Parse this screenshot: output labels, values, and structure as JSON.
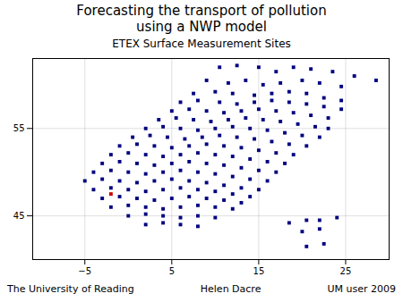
{
  "chart_data": {
    "type": "scatter",
    "title": [
      "Forecasting the transport of pollution",
      "using a NWP model"
    ],
    "subtitle": "ETEX Surface Measurement Sites",
    "annotations": [
      "The University of Reading",
      "Helen Dacre",
      "UM user 2009"
    ],
    "xlim": [
      -11,
      30
    ],
    "ylim": [
      40,
      63
    ],
    "xticks": [
      -5,
      5,
      15,
      25
    ],
    "yticks": [
      45,
      55
    ],
    "grid": true,
    "series": [
      {
        "type": "scatter",
        "marker": "square",
        "color": "#000080",
        "x": [
          10.5,
          12.5,
          15.0,
          17.0,
          19.0,
          21.0,
          23.5,
          26.0,
          28.5,
          9.0,
          11.5,
          13.5,
          15.5,
          17.5,
          20.0,
          22.0,
          24.5,
          7.5,
          10.0,
          12.0,
          14.5,
          16.5,
          18.5,
          20.5,
          22.5,
          24.5,
          6.0,
          8.0,
          10.5,
          12.5,
          14.5,
          16.5,
          18.5,
          20.5,
          22.5,
          24.5,
          5.0,
          7.0,
          9.0,
          11.0,
          13.0,
          15.0,
          17.0,
          19.0,
          21.0,
          23.0,
          3.5,
          5.5,
          7.5,
          9.5,
          11.5,
          13.5,
          15.5,
          17.5,
          19.5,
          21.5,
          23.0,
          2.0,
          4.0,
          6.0,
          8.0,
          10.0,
          12.0,
          14.0,
          16.0,
          18.0,
          20.0,
          22.0,
          0.5,
          2.5,
          4.5,
          6.5,
          8.5,
          10.5,
          12.5,
          14.5,
          16.5,
          18.5,
          20.5,
          -1.0,
          1.0,
          3.0,
          5.0,
          7.0,
          9.0,
          11.0,
          13.0,
          15.0,
          17.0,
          19.0,
          -2.0,
          0.0,
          2.0,
          4.0,
          6.0,
          8.0,
          10.0,
          12.0,
          14.0,
          16.0,
          18.0,
          -3.0,
          -1.0,
          1.0,
          3.0,
          5.0,
          7.0,
          9.0,
          11.0,
          13.0,
          15.0,
          17.0,
          -4.0,
          -2.0,
          0.0,
          2.0,
          4.0,
          6.0,
          8.0,
          10.0,
          12.0,
          14.0,
          16.0,
          -5.0,
          -3.0,
          -1.0,
          1.0,
          3.0,
          5.0,
          7.0,
          9.0,
          11.0,
          13.0,
          15.0,
          -4.0,
          -2.0,
          0.0,
          2.0,
          4.0,
          6.0,
          8.0,
          10.0,
          12.0,
          14.0,
          -3.0,
          -1.0,
          1.0,
          3.0,
          5.0,
          7.0,
          9.0,
          11.0,
          13.0,
          -2.0,
          0.0,
          2.0,
          4.0,
          6.0,
          8.0,
          10.0,
          12.0,
          0.0,
          2.0,
          4.0,
          6.0,
          8.0,
          10.0,
          2.0,
          4.0,
          6.0,
          8.0,
          22.0,
          24.0,
          20.0,
          22.0,
          20.5,
          22.5,
          18.5,
          20.5
        ],
        "values": [
          62.0,
          62.2,
          62.0,
          61.5,
          62.0,
          61.8,
          61.5,
          61.0,
          60.5,
          60.5,
          60.2,
          60.5,
          60.0,
          60.2,
          60.5,
          60.2,
          59.8,
          59.0,
          59.2,
          59.0,
          58.8,
          59.0,
          59.2,
          59.0,
          58.5,
          58.2,
          58.0,
          58.2,
          58.0,
          57.8,
          58.0,
          58.2,
          58.0,
          57.8,
          57.5,
          57.2,
          57.0,
          57.2,
          57.0,
          56.8,
          57.0,
          57.2,
          57.0,
          56.8,
          56.5,
          56.2,
          56.0,
          56.2,
          56.0,
          55.8,
          56.0,
          56.2,
          56.0,
          55.8,
          55.5,
          55.2,
          55.0,
          55.0,
          55.2,
          55.0,
          54.8,
          55.0,
          55.2,
          55.0,
          54.8,
          54.5,
          54.2,
          54.0,
          54.0,
          54.2,
          54.0,
          53.8,
          54.0,
          54.2,
          54.0,
          53.8,
          53.5,
          53.2,
          53.0,
          53.0,
          53.2,
          53.0,
          52.8,
          53.0,
          53.2,
          53.0,
          52.8,
          52.5,
          52.2,
          52.0,
          52.0,
          52.2,
          52.0,
          51.8,
          52.0,
          52.2,
          52.0,
          51.8,
          51.5,
          51.2,
          51.0,
          51.0,
          51.2,
          51.0,
          50.8,
          51.0,
          51.2,
          51.0,
          50.8,
          50.5,
          50.2,
          50.0,
          50.0,
          50.2,
          50.0,
          49.8,
          50.0,
          50.2,
          50.0,
          49.8,
          49.5,
          49.2,
          49.0,
          49.0,
          49.2,
          49.0,
          48.8,
          49.0,
          49.2,
          49.0,
          48.8,
          48.5,
          48.2,
          48.0,
          48.0,
          48.2,
          48.0,
          47.8,
          48.0,
          48.2,
          48.0,
          47.8,
          47.5,
          47.2,
          47.0,
          47.2,
          47.0,
          46.8,
          47.0,
          47.2,
          47.0,
          46.8,
          46.5,
          46.0,
          46.2,
          46.0,
          45.8,
          46.0,
          46.2,
          46.0,
          45.8,
          45.0,
          45.2,
          45.0,
          44.8,
          45.0,
          44.8,
          44.0,
          44.2,
          44.0,
          43.8,
          44.5,
          44.8,
          43.2,
          43.5,
          41.5,
          41.8,
          44.2,
          44.5
        ]
      },
      {
        "type": "scatter",
        "marker": "square",
        "color": "#cc0000",
        "x": [
          -2.0
        ],
        "values": [
          47.5
        ]
      }
    ]
  }
}
